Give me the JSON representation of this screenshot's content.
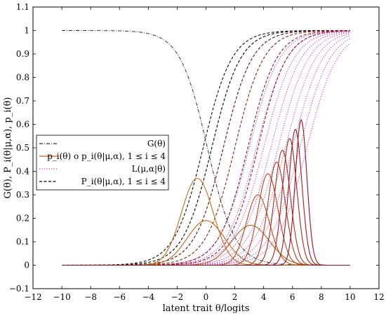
{
  "chart_data": {
    "type": "line",
    "xlabel": "latent trait θ/logits",
    "ylabel": "G(θ), P_i(θ|μ,α), p_i(θ)",
    "xlim": [
      -12,
      12
    ],
    "ylim": [
      -0.1,
      1.1
    ],
    "xticks": [
      -12,
      -10,
      -8,
      -6,
      -4,
      -2,
      0,
      2,
      4,
      6,
      8,
      10,
      12
    ],
    "yticks": [
      -0.1,
      0,
      0.1,
      0.2,
      0.3,
      0.4,
      0.5,
      0.6,
      0.7,
      0.8,
      0.9,
      1,
      1.1
    ],
    "xtick_labels": [
      "−12",
      "−10",
      "−8",
      "−6",
      "−4",
      "−2",
      "0",
      "2",
      "4",
      "6",
      "8",
      "10",
      "12"
    ],
    "ytick_labels": [
      "−0.1",
      "0",
      "0.1",
      "0.2",
      "0.3",
      "0.4",
      "0.5",
      "0.6",
      "0.7",
      "0.8",
      "0.9",
      "1",
      "1.1"
    ],
    "legend_position": "center-left",
    "legend": [
      {
        "label": "G(θ)",
        "style": "dash-dot",
        "color": "#333333"
      },
      {
        "label": "p_i(θ) o p_i(θ|μ,α), 1 ≤ i ≤ 4",
        "style": "solid",
        "color": "#c06010"
      },
      {
        "label": "L(μ,α|θ)",
        "style": "dotted",
        "color": "#cc33cc"
      },
      {
        "label": "P_i(θ|μ,α), 1 ≤ i ≤ 4",
        "style": "dashed",
        "color": "#000000"
      }
    ],
    "series": [
      {
        "type": "G",
        "x_range": [
          -10,
          10
        ],
        "center": 0.1,
        "slope": 1.05
      },
      {
        "type": "density",
        "peaks": [
          {
            "center": -0.6,
            "height": 0.37,
            "width": 1.1
          },
          {
            "center": 0.0,
            "height": 0.19,
            "width": 1.3
          },
          {
            "center": 3.1,
            "height": 0.17,
            "width": 1.3
          },
          {
            "center": 3.6,
            "height": 0.3,
            "width": 0.8
          },
          {
            "center": 4.3,
            "height": 0.39,
            "width": 0.7
          },
          {
            "center": 4.9,
            "height": 0.44,
            "width": 0.6
          },
          {
            "center": 5.3,
            "height": 0.49,
            "width": 0.55
          },
          {
            "center": 5.8,
            "height": 0.54,
            "width": 0.5
          },
          {
            "center": 6.2,
            "height": 0.58,
            "width": 0.45
          },
          {
            "center": 6.6,
            "height": 0.62,
            "width": 0.4
          }
        ]
      },
      {
        "type": "P_dashed",
        "location": [
          -0.2,
          0.4,
          1.2,
          2.0,
          2.9,
          3.6
        ],
        "colors": [
          "#1a0a0a",
          "#000000",
          "#5a1010",
          "#7a2a0a",
          "#8b2020",
          "#9a1a1a"
        ]
      },
      {
        "type": "L_dotted",
        "location": [
          3.0,
          3.5,
          4.0,
          4.5,
          5.0,
          5.5,
          6.0,
          6.5,
          7.0
        ]
      }
    ]
  },
  "colors": {
    "axis": "#000000",
    "G_line": "#333333",
    "density_line": "#c06010",
    "likelihood_line": "#cc33cc",
    "P_line": "#000000"
  }
}
